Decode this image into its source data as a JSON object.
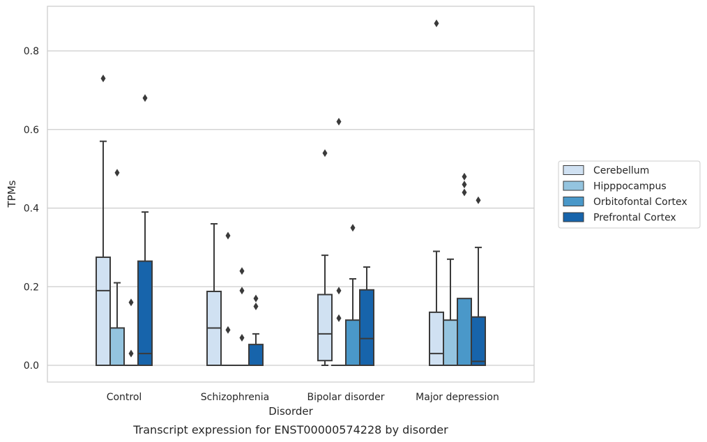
{
  "chart_data": {
    "type": "boxplot",
    "title": "Transcript expression for ENST00000574228 by disorder",
    "xlabel": "Disorder",
    "ylabel": "TPMs",
    "ylim": [
      -0.042,
      0.92
    ],
    "yticks": [
      0.0,
      0.2,
      0.4,
      0.6,
      0.8
    ],
    "ytick_labels": [
      "0.0",
      "0.2",
      "0.4",
      "0.6",
      "0.8"
    ],
    "grid": "horizontal",
    "legend_position": "right",
    "categories": [
      "Control",
      "Schizophrenia",
      "Bipolar disorder",
      "Major depression"
    ],
    "series": [
      {
        "name": "Cerebellum",
        "color": "#d0e1f2",
        "boxes": [
          {
            "q1": 0.0,
            "median": 0.19,
            "q3": 0.275,
            "whislo": 0.0,
            "whishi": 0.57,
            "fliers": [
              0.73
            ]
          },
          {
            "q1": 0.0,
            "median": 0.095,
            "q3": 0.188,
            "whislo": 0.0,
            "whishi": 0.36,
            "fliers": []
          },
          {
            "q1": 0.012,
            "median": 0.08,
            "q3": 0.18,
            "whislo": 0.0,
            "whishi": 0.28,
            "fliers": [
              0.54
            ]
          },
          {
            "q1": 0.0,
            "median": 0.03,
            "q3": 0.135,
            "whislo": 0.0,
            "whishi": 0.29,
            "fliers": [
              0.87
            ]
          }
        ]
      },
      {
        "name": "Hipppocampus",
        "color": "#94c4df",
        "boxes": [
          {
            "q1": 0.0,
            "median": 0.0,
            "q3": 0.095,
            "whislo": 0.0,
            "whishi": 0.21,
            "fliers": [
              0.49
            ]
          },
          {
            "q1": 0.0,
            "median": 0.0,
            "q3": 0.0,
            "whislo": 0.0,
            "whishi": 0.0,
            "fliers": [
              0.33,
              0.09
            ]
          },
          {
            "q1": 0.0,
            "median": 0.0,
            "q3": 0.0,
            "whislo": 0.0,
            "whishi": 0.0,
            "fliers": [
              0.62,
              0.19,
              0.12
            ]
          },
          {
            "q1": 0.0,
            "median": 0.0,
            "q3": 0.115,
            "whislo": 0.0,
            "whishi": 0.27,
            "fliers": []
          }
        ]
      },
      {
        "name": "Orbitofontal Cortex",
        "color": "#4a98c9",
        "boxes": [
          {
            "q1": 0.0,
            "median": 0.0,
            "q3": 0.0,
            "whislo": 0.0,
            "whishi": 0.0,
            "fliers": [
              0.16,
              0.03
            ]
          },
          {
            "q1": 0.0,
            "median": 0.0,
            "q3": 0.0,
            "whislo": 0.0,
            "whishi": 0.0,
            "fliers": [
              0.24,
              0.19,
              0.07
            ]
          },
          {
            "q1": 0.0,
            "median": 0.0,
            "q3": 0.115,
            "whislo": 0.0,
            "whishi": 0.22,
            "fliers": [
              0.35
            ]
          },
          {
            "q1": 0.0,
            "median": 0.0,
            "q3": 0.17,
            "whislo": 0.0,
            "whishi": 0.17,
            "fliers": [
              0.48,
              0.46,
              0.44
            ]
          }
        ]
      },
      {
        "name": "Prefrontal Cortex",
        "color": "#1764ab",
        "boxes": [
          {
            "q1": 0.0,
            "median": 0.03,
            "q3": 0.265,
            "whislo": 0.0,
            "whishi": 0.39,
            "fliers": [
              0.68
            ]
          },
          {
            "q1": 0.0,
            "median": 0.0,
            "q3": 0.053,
            "whislo": 0.0,
            "whishi": 0.08,
            "fliers": [
              0.17,
              0.15
            ]
          },
          {
            "q1": 0.0,
            "median": 0.068,
            "q3": 0.192,
            "whislo": 0.0,
            "whishi": 0.25,
            "fliers": []
          },
          {
            "q1": 0.0,
            "median": 0.01,
            "q3": 0.123,
            "whislo": 0.0,
            "whishi": 0.3,
            "fliers": [
              0.42
            ]
          }
        ]
      }
    ]
  }
}
